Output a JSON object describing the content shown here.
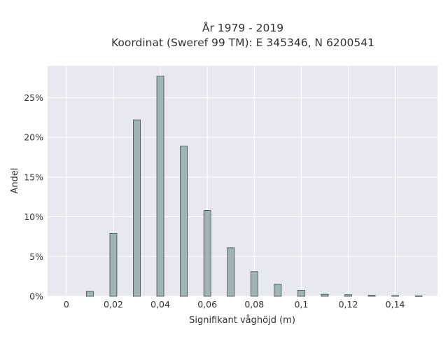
{
  "chart_data": {
    "type": "bar",
    "title_line1": "År 1979 - 2019",
    "title_line2": "Koordinat (Sweref 99 TM): E 345346, N 6200541",
    "xlabel": "Signifikant våghöjd (m)",
    "ylabel": "Andel",
    "xlim": [
      -0.008,
      0.158
    ],
    "ylim": [
      0,
      29
    ],
    "grid": true,
    "x": [
      0.01,
      0.02,
      0.03,
      0.04,
      0.05,
      0.06,
      0.07,
      0.08,
      0.09,
      0.1,
      0.11,
      0.12,
      0.13,
      0.14,
      0.15
    ],
    "values": [
      0.6,
      7.9,
      22.2,
      27.7,
      18.9,
      10.8,
      6.1,
      3.1,
      1.5,
      0.75,
      0.25,
      0.2,
      0.12,
      0.08,
      0.05
    ],
    "xticks": [
      0,
      0.02,
      0.04,
      0.06,
      0.08,
      0.1,
      0.12,
      0.14
    ],
    "xtick_labels": [
      "0",
      "0,02",
      "0,04",
      "0,06",
      "0,08",
      "0,1",
      "0,12",
      "0,14"
    ],
    "yticks": [
      0,
      5,
      10,
      15,
      20,
      25
    ],
    "ytick_labels": [
      "0%",
      "5%",
      "10%",
      "15%",
      "20%",
      "25%"
    ],
    "colors": {
      "bar_fill": "#9fb5b5",
      "bar_stroke": "#3d4a4a",
      "plot_bg": "#e8e8f0",
      "grid": "#ffffff"
    }
  }
}
